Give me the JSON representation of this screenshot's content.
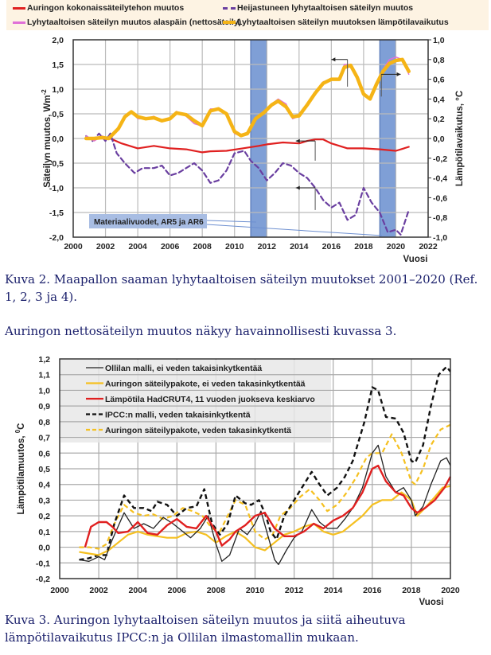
{
  "figure1": {
    "legend": [
      {
        "label": "Auringon kokonaissäteilytehon muutos",
        "color": "#e02020",
        "style": "solid"
      },
      {
        "label": "Heijastuneen lyhytaaltoisen säteilyn muutos",
        "color": "#6a3fa0",
        "style": "dashed"
      },
      {
        "label": "Lyhytaaltoisen säteilyn muutos alaspäin (nettosäteily)",
        "color": "#e070d8",
        "style": "solid"
      },
      {
        "label": "Lyhytaaltoisen säteilyn muutoksen lämpötilavaikutus",
        "color": "#f5b416",
        "style": "solid-thick"
      }
    ],
    "annotation": "Materiaalivuodet, AR5 ja AR6",
    "band_color": "#7f9fd6"
  },
  "figure2": {
    "legend": [
      {
        "label": "Ollilan malli, ei veden takaisinkytkentää",
        "color": "#222222",
        "style": "solid"
      },
      {
        "label": "Auringon säteilypakote, ei veden takasinkytkentää",
        "color": "#f5c020",
        "style": "solid"
      },
      {
        "label": "Lämpötila HadCRUT4, 11 vuoden juokseva keskiarvo",
        "color": "#e02020",
        "style": "solid"
      },
      {
        "label": "IPCC:n malli, veden takaisinkytkentä",
        "color": "#111111",
        "style": "dashed"
      },
      {
        "label": "Auringon säteilypakote, veden takasinkytkentä",
        "color": "#f5c020",
        "style": "dashed"
      }
    ]
  },
  "captions": {
    "fig2_caption": "Kuva 2. Maapallon saaman lyhytaaltoisen säteilyn muutokset 2001–2020 (Ref. 1, 2, 3 ja 4).",
    "paragraph": "Auringon nettosäteilyn muutos näkyy havainnollisesti kuvassa 3.",
    "fig3_caption": "Kuva 3. Auringon lyhytaaltoisen säteilyn muutos ja siitä aiheutuva lämpötilavaikutus IPCC:n ja Ollilan ilmastomallin mukaan."
  },
  "chart_data": [
    {
      "type": "line",
      "title": "",
      "xlabel": "Vuosi",
      "ylabel": "Säteilyn muutos, Wm-2",
      "ylabel_main": "Säteilyn muutos,  Wm",
      "ylabel_sup": "-2",
      "y2label": "Lämpötilavaikutus, °C",
      "xlim": [
        2000,
        2022
      ],
      "ylim": [
        -2.0,
        2.0
      ],
      "y2lim": [
        -1.0,
        1.0
      ],
      "xticks": [
        "2000",
        "2002",
        "2004",
        "2006",
        "2008",
        "2010",
        "2012",
        "2014",
        "2016",
        "2018",
        "2020",
        "2022"
      ],
      "yticks": [
        "-2,0",
        "-1,5",
        "-1,0",
        "-0,5",
        "0,0",
        "0,5",
        "1,0",
        "1,5",
        "2,0"
      ],
      "y2ticks": [
        "-1,0",
        "-0,8",
        "-0,6",
        "-0,4",
        "-0,2",
        "0,0",
        "0,2",
        "0,4",
        "0,6",
        "0,8",
        "1,0"
      ],
      "grid": true,
      "legend_position": "top",
      "shaded_bands": [
        [
          2011,
          2012
        ],
        [
          2019,
          2020
        ]
      ],
      "series": [
        {
          "name": "Auringon kokonaissäteilytehon muutos",
          "x": [
            2000.8,
            2001.5,
            2002.3,
            2003,
            2003.5,
            2004,
            2005,
            2006,
            2007,
            2008,
            2008.5,
            2009.5,
            2010.5,
            2011.5,
            2012,
            2013,
            2014,
            2014.5,
            2015,
            2015.5,
            2016,
            2017,
            2018,
            2019,
            2020,
            2020.5,
            2020.8
          ],
          "y": [
            0.0,
            0.0,
            0.0,
            -0.1,
            -0.15,
            -0.2,
            -0.15,
            -0.2,
            -0.22,
            -0.28,
            -0.26,
            -0.25,
            -0.2,
            -0.15,
            -0.12,
            -0.08,
            -0.1,
            -0.05,
            -0.02,
            -0.02,
            -0.1,
            -0.2,
            -0.2,
            -0.22,
            -0.25,
            -0.2,
            -0.17
          ]
        },
        {
          "name": "Heijastuneen lyhytaaltoisen säteilyn muutos",
          "x": [
            2000.8,
            2001.2,
            2001.6,
            2002,
            2002.3,
            2002.7,
            2003.2,
            2003.8,
            2004.3,
            2005,
            2005.5,
            2006,
            2006.5,
            2007,
            2007.5,
            2008,
            2008.5,
            2009,
            2009.5,
            2010,
            2010.6,
            2011,
            2011.5,
            2012,
            2012.5,
            2013,
            2013.5,
            2014,
            2014.5,
            2015,
            2015.5,
            2016,
            2016.5,
            2017,
            2017.5,
            2018,
            2018.5,
            2019,
            2019.5,
            2020,
            2020.3,
            2020.8
          ],
          "y": [
            0.05,
            -0.05,
            0.1,
            -0.05,
            0.1,
            -0.3,
            -0.5,
            -0.7,
            -0.6,
            -0.6,
            -0.55,
            -0.75,
            -0.7,
            -0.6,
            -0.5,
            -0.65,
            -0.9,
            -0.85,
            -0.65,
            -0.3,
            -0.25,
            -0.45,
            -0.6,
            -0.85,
            -0.7,
            -0.5,
            -0.55,
            -0.7,
            -0.8,
            -1.0,
            -1.25,
            -1.4,
            -1.3,
            -1.65,
            -1.55,
            -1.0,
            -1.3,
            -1.5,
            -1.9,
            -1.85,
            -1.95,
            -1.45
          ]
        },
        {
          "name": "Lyhytaaltoisen säteilyn muutos alaspäin (nettosäteily)",
          "x": [
            2000.8,
            2001.3,
            2001.8,
            2002.2,
            2002.8,
            2003.2,
            2003.6,
            2004,
            2004.5,
            2005,
            2005.5,
            2006,
            2006.4,
            2007,
            2007.5,
            2008,
            2008.5,
            2009,
            2009.5,
            2010,
            2010.4,
            2010.8,
            2011.3,
            2011.8,
            2012.3,
            2012.7,
            2013.2,
            2013.6,
            2014,
            2014.5,
            2015,
            2015.5,
            2016,
            2016.5,
            2016.8,
            2017.2,
            2017.6,
            2018,
            2018.4,
            2018.8,
            2019.2,
            2019.6,
            2020,
            2020.4,
            2020.8
          ],
          "y": [
            0.05,
            -0.05,
            0.05,
            0.0,
            0.2,
            0.45,
            0.55,
            0.4,
            0.4,
            0.45,
            0.35,
            0.4,
            0.55,
            0.45,
            0.3,
            0.25,
            0.6,
            0.6,
            0.5,
            0.1,
            0.05,
            0.1,
            0.4,
            0.55,
            0.7,
            0.8,
            0.7,
            0.4,
            0.45,
            0.7,
            0.9,
            1.15,
            1.2,
            1.2,
            1.5,
            1.5,
            1.2,
            0.9,
            0.8,
            1.1,
            1.4,
            1.6,
            1.65,
            1.6,
            1.3
          ]
        },
        {
          "name": "Lyhytaaltoisen säteilyn muutoksen lämpötilavaikutus",
          "x": [
            2000.8,
            2001.3,
            2001.8,
            2002.2,
            2002.8,
            2003.2,
            2003.6,
            2004,
            2004.5,
            2005,
            2005.5,
            2006,
            2006.4,
            2007,
            2007.5,
            2008,
            2008.5,
            2009,
            2009.5,
            2010,
            2010.4,
            2010.8,
            2011.3,
            2011.8,
            2012.3,
            2012.7,
            2013.2,
            2013.6,
            2014,
            2014.5,
            2015,
            2015.5,
            2016,
            2016.5,
            2016.8,
            2017.2,
            2017.6,
            2018,
            2018.4,
            2018.8,
            2019.2,
            2019.6,
            2020,
            2020.4,
            2020.8
          ],
          "y2": [
            0.0,
            0.0,
            0.01,
            0.0,
            0.1,
            0.22,
            0.27,
            0.22,
            0.2,
            0.21,
            0.18,
            0.2,
            0.26,
            0.24,
            0.18,
            0.13,
            0.28,
            0.3,
            0.25,
            0.07,
            0.03,
            0.05,
            0.2,
            0.26,
            0.34,
            0.38,
            0.32,
            0.22,
            0.23,
            0.34,
            0.46,
            0.56,
            0.6,
            0.6,
            0.72,
            0.74,
            0.62,
            0.45,
            0.4,
            0.55,
            0.68,
            0.76,
            0.79,
            0.8,
            0.68
          ]
        }
      ]
    },
    {
      "type": "line",
      "title": "",
      "xlabel": "Vuosi",
      "ylabel": "Lämpötilamuutos, 0C",
      "ylabel_main": "Lämpötilamuutos, ",
      "ylabel_sup": "0",
      "ylabel_unit": "C",
      "xlim": [
        2000,
        2020
      ],
      "ylim": [
        -0.2,
        1.2
      ],
      "xticks": [
        "2000",
        "2002",
        "2004",
        "2006",
        "2008",
        "2010",
        "2012",
        "2014",
        "2016",
        "2018",
        "2020"
      ],
      "yticks": [
        "-0,2",
        "-0,1",
        "0,0",
        "0,1",
        "0,2",
        "0,3",
        "0,4",
        "0,5",
        "0,6",
        "0,7",
        "0,8",
        "0,9",
        "1,0",
        "1,1",
        "1,2"
      ],
      "grid": true,
      "legend_position": "top-left",
      "series": [
        {
          "name": "Ollilan malli, ei veden takaisinkytkentää",
          "x": [
            2001,
            2001.5,
            2002,
            2002.3,
            2002.7,
            2003.3,
            2003.8,
            2004.3,
            2004.8,
            2005.3,
            2005.8,
            2006.3,
            2006.7,
            2007.2,
            2007.6,
            2008,
            2008.3,
            2008.7,
            2009.2,
            2009.6,
            2010,
            2010.3,
            2010.6,
            2011,
            2011.2,
            2011.6,
            2012,
            2012.4,
            2012.9,
            2013.3,
            2013.7,
            2014.2,
            2014.6,
            2015,
            2015.5,
            2016,
            2016.3,
            2016.7,
            2017.2,
            2017.6,
            2018,
            2018.2,
            2018.6,
            2019,
            2019.5,
            2019.8,
            2020
          ],
          "y": [
            -0.08,
            -0.09,
            -0.06,
            -0.08,
            0.05,
            0.22,
            0.12,
            0.15,
            0.12,
            0.19,
            0.15,
            0.1,
            0.06,
            0.12,
            0.2,
            0.02,
            -0.09,
            -0.05,
            0.12,
            0.08,
            0.15,
            0.23,
            0.1,
            -0.08,
            -0.11,
            -0.02,
            0.06,
            0.1,
            0.24,
            0.16,
            0.12,
            0.12,
            0.18,
            0.25,
            0.38,
            0.6,
            0.65,
            0.45,
            0.35,
            0.38,
            0.3,
            0.2,
            0.26,
            0.4,
            0.55,
            0.57,
            0.52
          ]
        },
        {
          "name": "Auringon säteilypakote, ei veden takasinkytkentää",
          "x": [
            2001,
            2001.5,
            2002,
            2002.5,
            2003,
            2003.5,
            2004,
            2004.5,
            2005,
            2005.5,
            2006,
            2006.5,
            2007,
            2007.5,
            2008,
            2008.5,
            2009,
            2009.5,
            2010,
            2010.5,
            2011,
            2011.5,
            2012,
            2012.5,
            2013,
            2013.5,
            2014,
            2014.5,
            2015,
            2015.5,
            2016,
            2016.5,
            2017,
            2017.5,
            2018,
            2018.3,
            2018.7,
            2019.2,
            2019.6,
            2020
          ],
          "y": [
            -0.03,
            -0.04,
            -0.05,
            -0.02,
            0.03,
            0.08,
            0.1,
            0.08,
            0.07,
            0.06,
            0.06,
            0.09,
            0.1,
            0.08,
            0.03,
            0.07,
            0.1,
            0.06,
            0.0,
            -0.02,
            0.03,
            0.08,
            0.1,
            0.13,
            0.15,
            0.1,
            0.08,
            0.1,
            0.15,
            0.2,
            0.27,
            0.3,
            0.3,
            0.35,
            0.3,
            0.2,
            0.25,
            0.32,
            0.38,
            0.39
          ]
        },
        {
          "name": "Lämpötila HadCRUT4, 11 vuoden juokseva keskiarvo",
          "x": [
            2001.3,
            2001.6,
            2002,
            2002.4,
            2002.7,
            2003,
            2003.5,
            2004,
            2004.5,
            2005,
            2005.5,
            2006,
            2006.5,
            2007,
            2007.5,
            2008,
            2008.3,
            2008.7,
            2009,
            2009.5,
            2010,
            2010.5,
            2011,
            2011.5,
            2012,
            2012.5,
            2013,
            2013.5,
            2014,
            2014.5,
            2015,
            2015.5,
            2016,
            2016.3,
            2016.7,
            2017.2,
            2017.6,
            2018,
            2018.3,
            2018.7,
            2019.2,
            2019.7,
            2020
          ],
          "y": [
            0.0,
            0.13,
            0.16,
            0.16,
            0.13,
            0.09,
            0.1,
            0.16,
            0.09,
            0.08,
            0.14,
            0.18,
            0.13,
            0.12,
            0.2,
            0.1,
            0.01,
            0.05,
            0.1,
            0.14,
            0.2,
            0.22,
            0.12,
            0.07,
            0.07,
            0.1,
            0.15,
            0.12,
            0.17,
            0.2,
            0.25,
            0.35,
            0.5,
            0.52,
            0.42,
            0.35,
            0.33,
            0.25,
            0.22,
            0.25,
            0.3,
            0.38,
            0.45
          ]
        },
        {
          "name": "IPCC:n malli, veden takaisinkytkentä",
          "x": [
            2001,
            2001.5,
            2002,
            2002.4,
            2002.8,
            2003.3,
            2003.8,
            2004.3,
            2004.7,
            2005,
            2005.5,
            2006,
            2006.5,
            2007,
            2007.4,
            2007.8,
            2008.2,
            2008.6,
            2009,
            2009.5,
            2009.8,
            2010.2,
            2010.5,
            2010.8,
            2011.1,
            2011.5,
            2012,
            2012.5,
            2012.9,
            2013.3,
            2013.7,
            2014.2,
            2014.6,
            2015,
            2015.6,
            2016,
            2016.3,
            2016.7,
            2017.2,
            2017.6,
            2018,
            2018.2,
            2018.6,
            2019,
            2019.4,
            2019.8,
            2020
          ],
          "y": [
            -0.08,
            -0.07,
            -0.05,
            -0.05,
            0.15,
            0.33,
            0.25,
            0.25,
            0.23,
            0.29,
            0.27,
            0.2,
            0.25,
            0.26,
            0.37,
            0.15,
            0.08,
            0.15,
            0.33,
            0.28,
            0.27,
            0.3,
            0.22,
            0.1,
            0.05,
            0.2,
            0.3,
            0.4,
            0.48,
            0.4,
            0.33,
            0.38,
            0.45,
            0.55,
            0.8,
            1.02,
            1.0,
            0.83,
            0.82,
            0.73,
            0.55,
            0.54,
            0.65,
            0.9,
            1.1,
            1.15,
            1.12
          ]
        },
        {
          "name": "Auringon säteilypakote, veden takasinkytkentä",
          "x": [
            2001,
            2001.5,
            2002,
            2002.4,
            2002.8,
            2003.3,
            2003.8,
            2004.3,
            2004.8,
            2005.3,
            2005.8,
            2006.3,
            2006.8,
            2007.3,
            2007.8,
            2008.2,
            2008.6,
            2009,
            2009.5,
            2010,
            2010.5,
            2010.9,
            2011.3,
            2011.8,
            2012.3,
            2012.8,
            2013.3,
            2013.7,
            2014.2,
            2014.7,
            2015.2,
            2015.7,
            2016,
            2016.5,
            2017,
            2017.5,
            2018,
            2018.2,
            2018.6,
            2019,
            2019.5,
            2020
          ],
          "y": [
            0.0,
            0.0,
            -0.01,
            0.02,
            0.15,
            0.27,
            0.22,
            0.2,
            0.21,
            0.18,
            0.2,
            0.25,
            0.23,
            0.2,
            0.12,
            0.1,
            0.2,
            0.3,
            0.27,
            0.1,
            0.05,
            0.08,
            0.2,
            0.25,
            0.32,
            0.37,
            0.3,
            0.23,
            0.27,
            0.35,
            0.45,
            0.57,
            0.6,
            0.6,
            0.72,
            0.6,
            0.42,
            0.4,
            0.5,
            0.65,
            0.75,
            0.78
          ]
        }
      ]
    }
  ]
}
